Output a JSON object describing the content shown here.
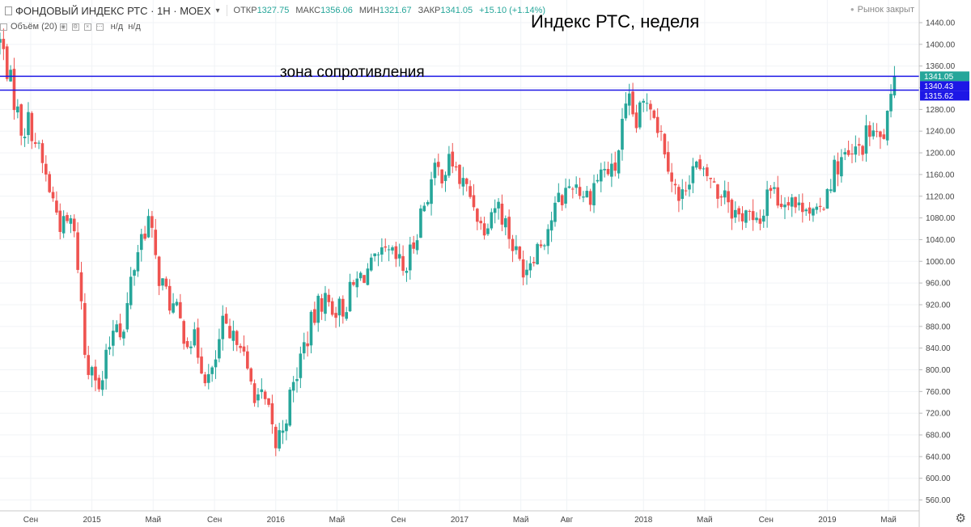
{
  "header": {
    "symbol": "ФОНДОВЫЙ ИНДЕКС РТС · 1Н · MOEX",
    "open_label": "ОТКР",
    "open_value": "1327.75",
    "high_label": "МАКС",
    "high_value": "1356.06",
    "low_label": "МИН",
    "low_value": "1321.67",
    "close_label": "ЗАКР",
    "close_value": "1341.05",
    "change_value": "+15.10 (+1.14%)",
    "market_status": "Рынок закрыт"
  },
  "volume_row": {
    "label": "Объём (20)",
    "na1": "н/д",
    "na2": "н/д"
  },
  "annotations": {
    "title": "Индекс РТС, неделя",
    "zone_label": "зона сопротивления"
  },
  "settings_icon": "gear-icon",
  "colors": {
    "up": "#26a69a",
    "down": "#ef5350",
    "level": "#1d17e6",
    "axis_text": "#444"
  },
  "chart_data": {
    "type": "candlestick",
    "title": "Индекс РТС, неделя",
    "y_range": [
      540,
      1440
    ],
    "y_ticks": [
      560,
      600,
      640,
      680,
      720,
      760,
      800,
      840,
      880,
      920,
      960,
      1000,
      1040,
      1080,
      1120,
      1160,
      1200,
      1240,
      1280,
      1320,
      1360,
      1400,
      1440
    ],
    "x_range": [
      2014.5,
      2019.5
    ],
    "x_ticks": [
      {
        "label": "Сен",
        "x": 2014.667
      },
      {
        "label": "2015",
        "x": 2015.0
      },
      {
        "label": "Май",
        "x": 2015.333
      },
      {
        "label": "Сен",
        "x": 2015.667
      },
      {
        "label": "2016",
        "x": 2016.0
      },
      {
        "label": "Май",
        "x": 2016.333
      },
      {
        "label": "Сен",
        "x": 2016.667
      },
      {
        "label": "2017",
        "x": 2017.0
      },
      {
        "label": "Май",
        "x": 2017.333
      },
      {
        "label": "Авг",
        "x": 2017.583
      },
      {
        "label": "2018",
        "x": 2018.0
      },
      {
        "label": "Май",
        "x": 2018.333
      },
      {
        "label": "Сен",
        "x": 2018.667
      },
      {
        "label": "2019",
        "x": 2019.0
      },
      {
        "label": "Май",
        "x": 2019.333
      }
    ],
    "horizontal_levels": [
      1341.05,
      1315.62
    ],
    "price_labels": [
      {
        "value": 1341.05,
        "text": "1341.05",
        "color": "#26a69a"
      },
      {
        "value": 1340.43,
        "text": "1340.43",
        "color": "#1d17e6"
      },
      {
        "value": 1315.62,
        "text": "1315.62",
        "color": "#1d17e6"
      }
    ],
    "anchors": [
      [
        2014.5,
        1405
      ],
      [
        2014.53,
        1370
      ],
      [
        2014.57,
        1310
      ],
      [
        2014.62,
        1240
      ],
      [
        2014.66,
        1260
      ],
      [
        2014.72,
        1190
      ],
      [
        2014.78,
        1120
      ],
      [
        2014.84,
        1060
      ],
      [
        2014.89,
        1075
      ],
      [
        2014.93,
        980
      ],
      [
        2014.97,
        790
      ],
      [
        2015.0,
        830
      ],
      [
        2015.04,
        750
      ],
      [
        2015.08,
        820
      ],
      [
        2015.13,
        905
      ],
      [
        2015.17,
        860
      ],
      [
        2015.21,
        960
      ],
      [
        2015.26,
        1040
      ],
      [
        2015.31,
        1080
      ],
      [
        2015.35,
        990
      ],
      [
        2015.4,
        940
      ],
      [
        2015.45,
        910
      ],
      [
        2015.5,
        870
      ],
      [
        2015.56,
        850
      ],
      [
        2015.62,
        790
      ],
      [
        2015.65,
        780
      ],
      [
        2015.71,
        880
      ],
      [
        2015.76,
        840
      ],
      [
        2015.8,
        880
      ],
      [
        2015.84,
        790
      ],
      [
        2015.89,
        760
      ],
      [
        2015.95,
        730
      ],
      [
        2016.0,
        660
      ],
      [
        2016.04,
        700
      ],
      [
        2016.09,
        760
      ],
      [
        2016.14,
        830
      ],
      [
        2016.19,
        880
      ],
      [
        2016.25,
        930
      ],
      [
        2016.3,
        920
      ],
      [
        2016.36,
        910
      ],
      [
        2016.42,
        950
      ],
      [
        2016.48,
        980
      ],
      [
        2016.54,
        990
      ],
      [
        2016.6,
        1010
      ],
      [
        2016.66,
        1000
      ],
      [
        2016.7,
        980
      ],
      [
        2016.74,
        1020
      ],
      [
        2016.78,
        1080
      ],
      [
        2016.82,
        1120
      ],
      [
        2016.86,
        1160
      ],
      [
        2016.92,
        1170
      ],
      [
        2016.96,
        1185
      ],
      [
        2017.0,
        1150
      ],
      [
        2017.04,
        1130
      ],
      [
        2017.08,
        1110
      ],
      [
        2017.12,
        1060
      ],
      [
        2017.16,
        1090
      ],
      [
        2017.2,
        1110
      ],
      [
        2017.24,
        1080
      ],
      [
        2017.28,
        1040
      ],
      [
        2017.32,
        1000
      ],
      [
        2017.36,
        990
      ],
      [
        2017.4,
        1020
      ],
      [
        2017.45,
        1040
      ],
      [
        2017.5,
        1080
      ],
      [
        2017.54,
        1110
      ],
      [
        2017.58,
        1130
      ],
      [
        2017.62,
        1150
      ],
      [
        2017.66,
        1130
      ],
      [
        2017.7,
        1120
      ],
      [
        2017.74,
        1150
      ],
      [
        2017.78,
        1170
      ],
      [
        2017.84,
        1160
      ],
      [
        2017.88,
        1240
      ],
      [
        2017.92,
        1290
      ],
      [
        2017.96,
        1250
      ],
      [
        2017.99,
        1280
      ],
      [
        2018.03,
        1310
      ],
      [
        2018.08,
        1250
      ],
      [
        2018.12,
        1210
      ],
      [
        2018.16,
        1150
      ],
      [
        2018.2,
        1100
      ],
      [
        2018.24,
        1160
      ],
      [
        2018.28,
        1180
      ],
      [
        2018.32,
        1150
      ],
      [
        2018.36,
        1160
      ],
      [
        2018.4,
        1120
      ],
      [
        2018.44,
        1140
      ],
      [
        2018.48,
        1100
      ],
      [
        2018.52,
        1080
      ],
      [
        2018.56,
        1100
      ],
      [
        2018.6,
        1060
      ],
      [
        2018.64,
        1070
      ],
      [
        2018.68,
        1150
      ],
      [
        2018.72,
        1120
      ],
      [
        2018.76,
        1110
      ],
      [
        2018.8,
        1130
      ],
      [
        2018.84,
        1090
      ],
      [
        2018.88,
        1120
      ],
      [
        2018.91,
        1090
      ],
      [
        2018.95,
        1075
      ],
      [
        2019.0,
        1140
      ],
      [
        2019.04,
        1170
      ],
      [
        2019.08,
        1190
      ],
      [
        2019.12,
        1185
      ],
      [
        2019.16,
        1200
      ],
      [
        2019.2,
        1220
      ],
      [
        2019.24,
        1245
      ],
      [
        2019.28,
        1215
      ],
      [
        2019.31,
        1240
      ],
      [
        2019.34,
        1270
      ],
      [
        2019.37,
        1341
      ]
    ]
  }
}
